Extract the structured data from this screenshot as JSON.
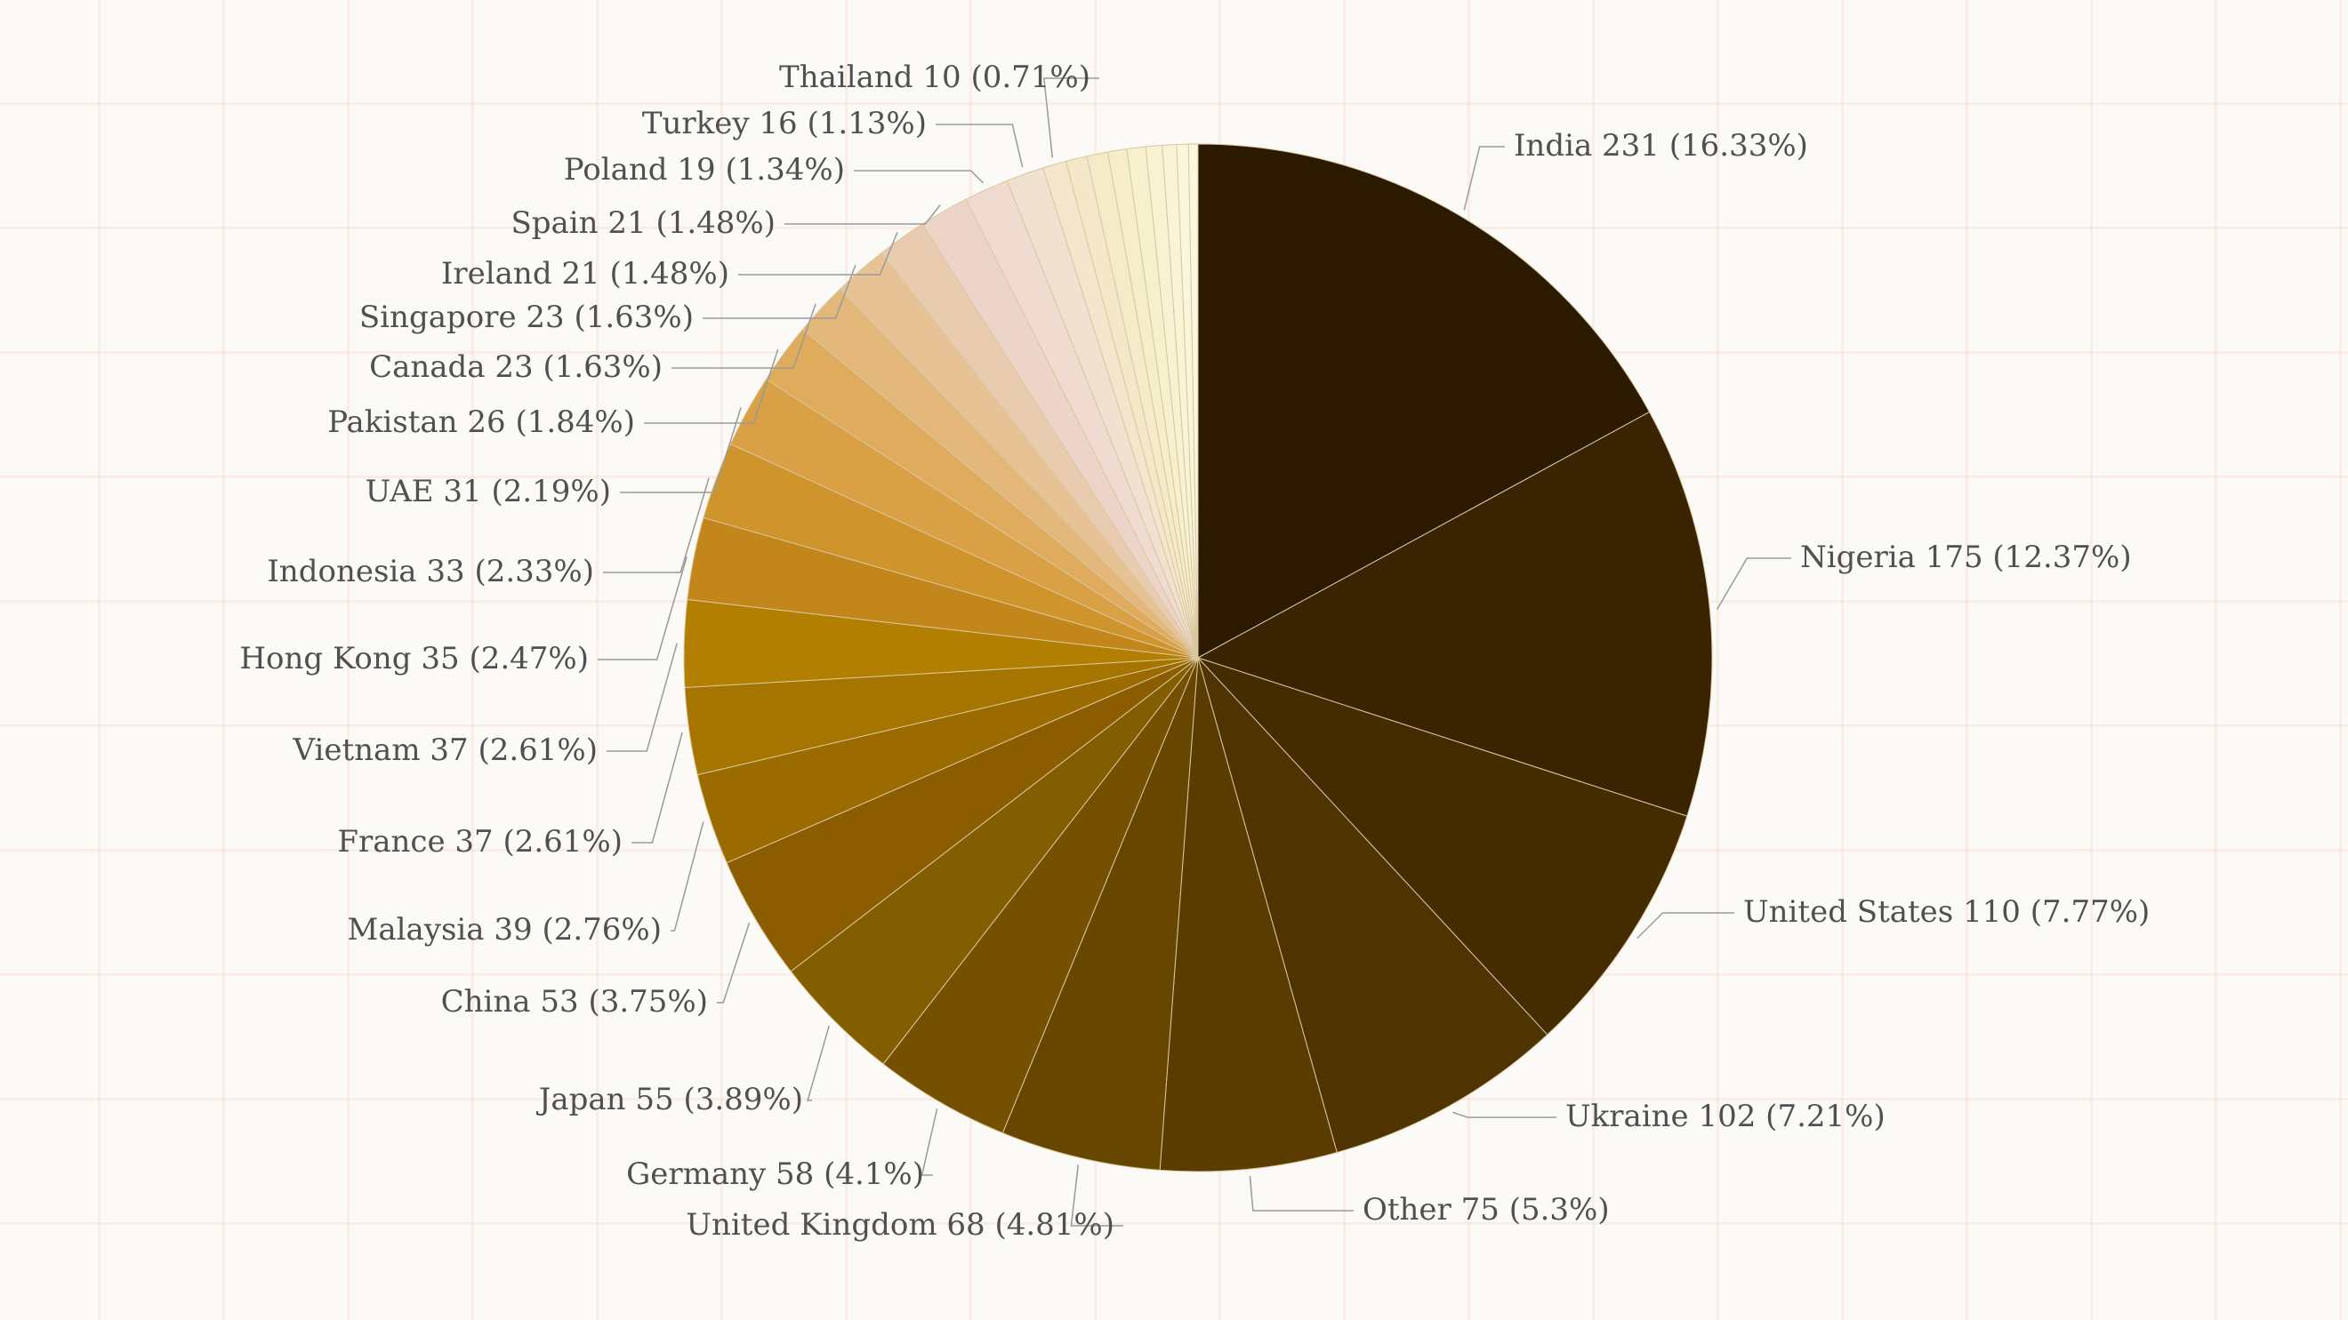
{
  "chart_data": {
    "type": "pie",
    "title": "",
    "start": "12 o'clock",
    "direction": "clockwise",
    "grid": true,
    "legend": "none",
    "slices": [
      {
        "name": "India",
        "value": 231,
        "percent": "16.33%",
        "color": "#2b1a00"
      },
      {
        "name": "Nigeria",
        "value": 175,
        "percent": "12.37%",
        "color": "#392300"
      },
      {
        "name": "United States",
        "value": 110,
        "percent": "7.77%",
        "color": "#442b00"
      },
      {
        "name": "Ukraine",
        "value": 102,
        "percent": "7.21%",
        "color": "#4f3300"
      },
      {
        "name": "Other",
        "value": 75,
        "percent": "5.3%",
        "color": "#5b3c00"
      },
      {
        "name": "United Kingdom",
        "value": 68,
        "percent": "4.81%",
        "color": "#674700"
      },
      {
        "name": "Germany",
        "value": 58,
        "percent": "4.1%",
        "color": "#745000"
      },
      {
        "name": "Japan",
        "value": 55,
        "percent": "3.89%",
        "color": "#835e00"
      },
      {
        "name": "China",
        "value": 53,
        "percent": "3.75%",
        "color": "#8c5d00"
      },
      {
        "name": "Malaysia",
        "value": 39,
        "percent": "2.76%",
        "color": "#9b6b00"
      },
      {
        "name": "France",
        "value": 37,
        "percent": "2.61%",
        "color": "#a67500"
      },
      {
        "name": "Vietnam",
        "value": 37,
        "percent": "2.61%",
        "color": "#b37f00"
      },
      {
        "name": "Hong Kong",
        "value": 35,
        "percent": "2.47%",
        "color": "#c2861b"
      },
      {
        "name": "Indonesia",
        "value": 33,
        "percent": "2.33%",
        "color": "#d0942c"
      },
      {
        "name": "UAE",
        "value": 31,
        "percent": "2.19%",
        "color": "#d9a045"
      },
      {
        "name": "Pakistan",
        "value": 26,
        "percent": "1.84%",
        "color": "#dfac5e"
      },
      {
        "name": "Canada",
        "value": 23,
        "percent": "1.63%",
        "color": "#e3b77a"
      },
      {
        "name": "Singapore",
        "value": 23,
        "percent": "1.63%",
        "color": "#e6c295"
      },
      {
        "name": "Ireland",
        "value": 21,
        "percent": "1.48%",
        "color": "#e9ccb0"
      },
      {
        "name": "Spain",
        "value": 21,
        "percent": "1.48%",
        "color": "#ecd4c8"
      },
      {
        "name": "Poland",
        "value": 19,
        "percent": "1.34%",
        "color": "#efdbd0"
      },
      {
        "name": "Turkey",
        "value": 16,
        "percent": "1.13%",
        "color": "#f1e1d0"
      },
      {
        "name": "Thailand",
        "value": 10,
        "percent": "0.71%",
        "color": "#f3e6cc"
      },
      {
        "name": "",
        "value": 9,
        "percent": "",
        "color": "#f4e8c8"
      },
      {
        "name": "",
        "value": 9,
        "percent": "",
        "color": "#f5ebc9"
      },
      {
        "name": "",
        "value": 8,
        "percent": "",
        "color": "#f6edca"
      },
      {
        "name": "",
        "value": 8,
        "percent": "",
        "color": "#f7f0cd"
      },
      {
        "name": "",
        "value": 7,
        "percent": "",
        "color": "#f8f2d2"
      },
      {
        "name": "",
        "value": 6,
        "percent": "",
        "color": "#f9f4d6"
      },
      {
        "name": "",
        "value": 5,
        "percent": "",
        "color": "#faf6db"
      },
      {
        "name": "",
        "value": 4,
        "percent": "",
        "color": "#fbf8e1"
      }
    ]
  }
}
